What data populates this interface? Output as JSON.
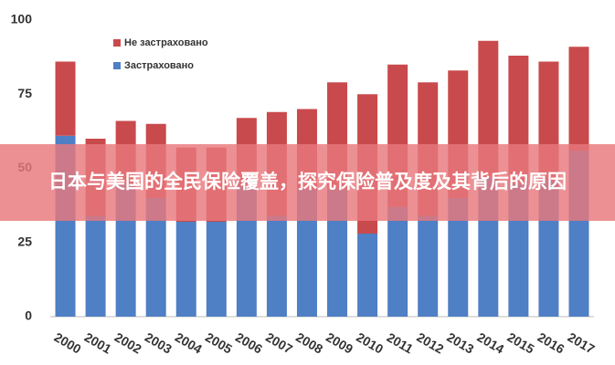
{
  "chart_data": {
    "type": "stacked_bar",
    "categories": [
      "2000",
      "2001",
      "2002",
      "2003",
      "2004",
      "2005",
      "2006",
      "2007",
      "2008",
      "2009",
      "2010",
      "2011",
      "2012",
      "2013",
      "2014",
      "2015",
      "2016",
      "2017"
    ],
    "series": [
      {
        "name": "Застраховано",
        "color": "#4f7fc4",
        "values": [
          61,
          34,
          45,
          40,
          32,
          32,
          44,
          34,
          43,
          43,
          28,
          37,
          34,
          40,
          47,
          45,
          46,
          56
        ]
      },
      {
        "name": "Не застраховано",
        "color": "#c94a4c",
        "values": [
          25,
          26,
          21,
          25,
          25,
          25,
          23,
          35,
          27,
          36,
          47,
          48,
          45,
          43,
          46,
          43,
          40,
          35
        ]
      }
    ],
    "ylim": [
      0,
      100
    ],
    "yticks": [
      0,
      25,
      50,
      75,
      100
    ],
    "grid": false,
    "legend": "top-left"
  },
  "banner": {
    "title": "日本与美国的全民保险覆盖，探究保险普及度及其背后的原因"
  }
}
